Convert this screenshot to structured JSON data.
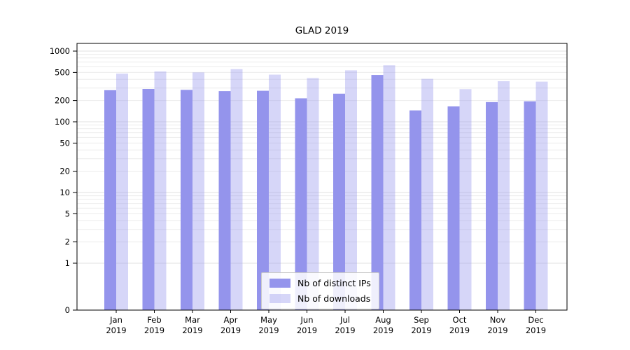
{
  "chart_data": {
    "type": "bar",
    "title": "GLAD 2019",
    "categories": [
      "Jan",
      "Feb",
      "Mar",
      "Apr",
      "May",
      "Jun",
      "Jul",
      "Aug",
      "Sep",
      "Oct",
      "Nov",
      "Dec"
    ],
    "category_year": "2019",
    "series": [
      {
        "name": "Nb of distinct IPs",
        "color": "#9494ec",
        "opacity": 1,
        "values": [
          280,
          292,
          283,
          272,
          275,
          215,
          250,
          460,
          145,
          165,
          190,
          195
        ]
      },
      {
        "name": "Nb of downloads",
        "color": "#9494ec",
        "opacity": 0.38,
        "composite_color": "#d6d6f8",
        "values": [
          480,
          515,
          500,
          555,
          465,
          415,
          535,
          630,
          405,
          290,
          375,
          370
        ]
      }
    ],
    "yscale": "symlog",
    "yticks": [
      0,
      1,
      2,
      5,
      10,
      20,
      50,
      100,
      200,
      500,
      1000
    ],
    "ylim": [
      0,
      1300
    ],
    "xlabel": "",
    "ylabel": "",
    "grid": "horizontal, minor log ticks, light gray",
    "legend_position": "inside bottom-center",
    "axis_color": "#000000",
    "grid_minor_color": "#ebebeb",
    "grid_major_color": "#e2e2e2"
  }
}
